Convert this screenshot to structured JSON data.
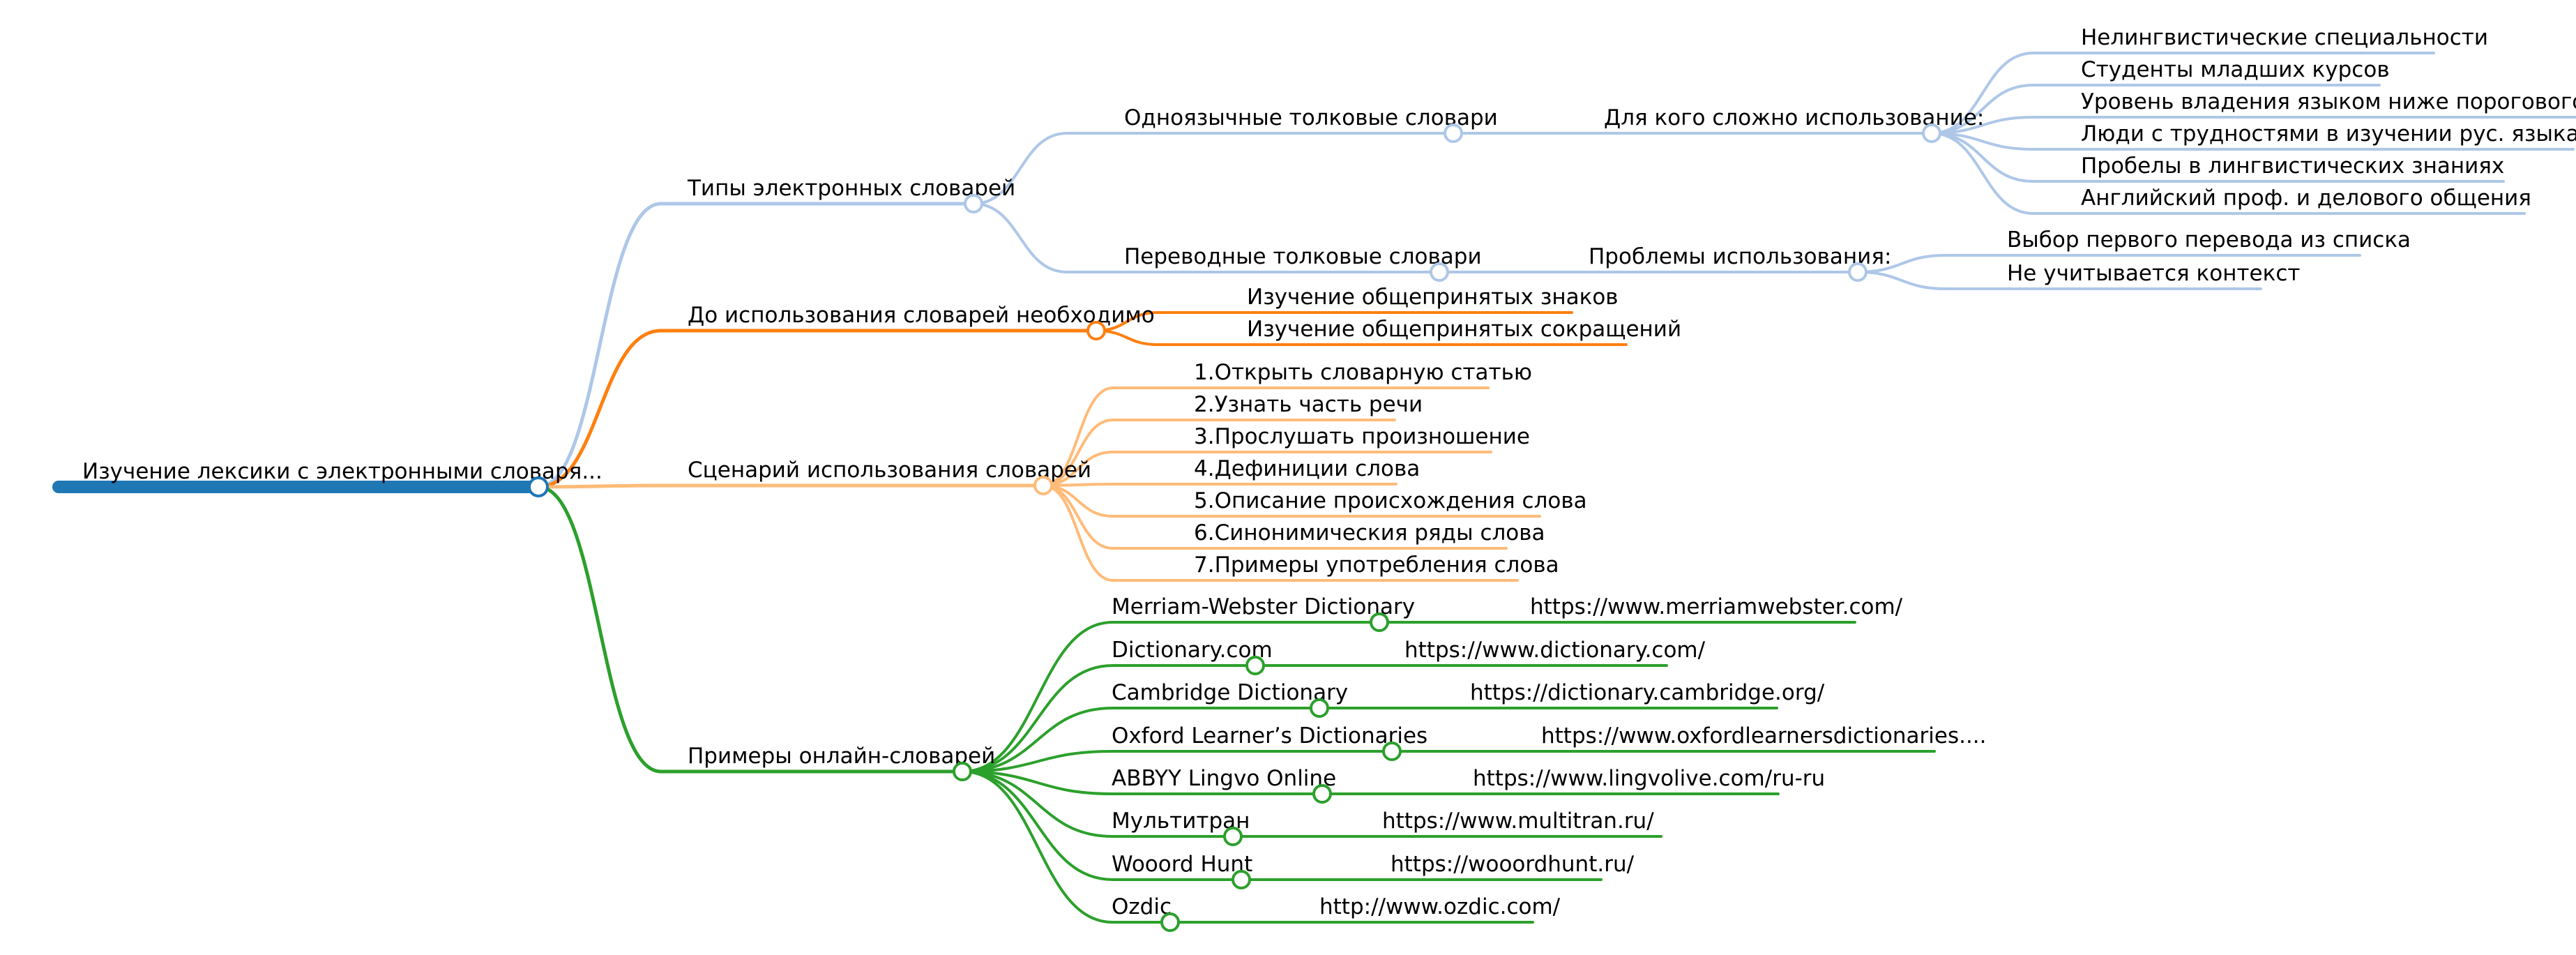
{
  "mindmap": {
    "root": {
      "label": "Изучение лексики с электронными словаря...",
      "color": "#1f77b4"
    },
    "branches": [
      {
        "id": "types",
        "label": "Типы электронных словарей",
        "color": "#aec7e8",
        "children": [
          {
            "id": "mono",
            "label": "Одноязычные толковые словари",
            "children": [
              {
                "id": "mono-who",
                "label": "Для кого сложно использование:",
                "children": [
                  {
                    "id": "w1",
                    "label": "Нелингвистические специальности"
                  },
                  {
                    "id": "w2",
                    "label": "Студенты младших курсов"
                  },
                  {
                    "id": "w3",
                    "label": "Уровень владения языком ниже порогового"
                  },
                  {
                    "id": "w4",
                    "label": "Люди с трудностями в изучении рус. языка"
                  },
                  {
                    "id": "w5",
                    "label": "Пробелы в лингвистических знаниях"
                  },
                  {
                    "id": "w6",
                    "label": "Английский проф. и делового общения"
                  }
                ]
              }
            ]
          },
          {
            "id": "trans",
            "label": "Переводные толковые словари",
            "children": [
              {
                "id": "trans-prob",
                "label": "Проблемы использования:",
                "children": [
                  {
                    "id": "p1",
                    "label": "Выбор первого перевода из списка"
                  },
                  {
                    "id": "p2",
                    "label": "Не учитывается контекст"
                  }
                ]
              }
            ]
          }
        ]
      },
      {
        "id": "before",
        "label": "До использования словарей необходимо",
        "color": "#ff7f0e",
        "children": [
          {
            "id": "b1",
            "label": "Изучение общепринятых знаков"
          },
          {
            "id": "b2",
            "label": "Изучение общепринятых сокращений"
          }
        ]
      },
      {
        "id": "scenario",
        "label": "Сценарий использования словарей",
        "color": "#ffbb78",
        "children": [
          {
            "id": "s1",
            "label": "1.Открыть словарную статью"
          },
          {
            "id": "s2",
            "label": "2.Узнать часть речи"
          },
          {
            "id": "s3",
            "label": "3.Прослушать произношение"
          },
          {
            "id": "s4",
            "label": "4.Дефиниции слова"
          },
          {
            "id": "s5",
            "label": "5.Описание происхождения слова"
          },
          {
            "id": "s6",
            "label": "6.Синонимическия ряды слова"
          },
          {
            "id": "s7",
            "label": "7.Примеры употребления слова"
          }
        ]
      },
      {
        "id": "examples",
        "label": "Примеры онлайн-словарей",
        "color": "#2ca02c",
        "children": [
          {
            "id": "e1",
            "label": "Merriam-Webster Dictionary",
            "children": [
              {
                "id": "e1u",
                "label": "https://www.merriamwebster.com/"
              }
            ]
          },
          {
            "id": "e2",
            "label": "Dictionary.com",
            "children": [
              {
                "id": "e2u",
                "label": "https://www.dictionary.com/"
              }
            ]
          },
          {
            "id": "e3",
            "label": "Cambridge Dictionary",
            "children": [
              {
                "id": "e3u",
                "label": "https://dictionary.cambridge.org/"
              }
            ]
          },
          {
            "id": "e4",
            "label": "Oxford Learner’s Dictionaries",
            "children": [
              {
                "id": "e4u",
                "label": "https://www.oxfordlearnersdictionaries...."
              }
            ]
          },
          {
            "id": "e5",
            "label": "ABBYY Lingvo Online",
            "children": [
              {
                "id": "e5u",
                "label": "https://www.lingvolive.com/ru-ru"
              }
            ]
          },
          {
            "id": "e6",
            "label": "Мультитран",
            "children": [
              {
                "id": "e6u",
                "label": "https://www.multitran.ru/"
              }
            ]
          },
          {
            "id": "e7",
            "label": "Wooord Hunt",
            "children": [
              {
                "id": "e7u",
                "label": "https://wooordhunt.ru/"
              }
            ]
          },
          {
            "id": "e8",
            "label": "Ozdic",
            "children": [
              {
                "id": "e8u",
                "label": "http://www.ozdic.com/"
              }
            ]
          }
        ]
      }
    ]
  }
}
